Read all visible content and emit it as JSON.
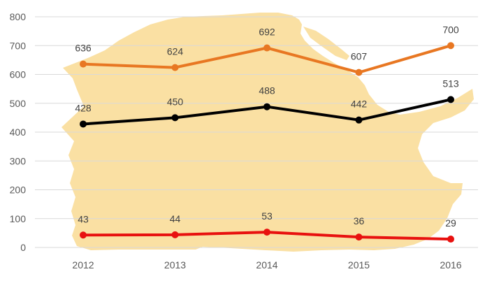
{
  "chart_data": {
    "type": "line",
    "title": "",
    "xlabel": "",
    "ylabel": "",
    "categories": [
      "2012",
      "2013",
      "2014",
      "2015",
      "2016"
    ],
    "ylim": [
      0,
      800
    ],
    "yticks": [
      0,
      100,
      200,
      300,
      400,
      500,
      600,
      700,
      800
    ],
    "grid": true,
    "legend": "none",
    "background_image": "map-silhouette",
    "series": [
      {
        "name": "orange-series",
        "color": "#E87722",
        "values": [
          636,
          624,
          692,
          607,
          700
        ],
        "labels": [
          "636",
          "624",
          "692",
          "607",
          "700"
        ]
      },
      {
        "name": "black-series",
        "color": "#000000",
        "values": [
          428,
          450,
          488,
          442,
          513
        ],
        "labels": [
          "428",
          "450",
          "488",
          "442",
          "513"
        ]
      },
      {
        "name": "red-series",
        "color": "#E8110F",
        "values": [
          43,
          44,
          53,
          36,
          29
        ],
        "labels": [
          "43",
          "44",
          "53",
          "36",
          "29"
        ]
      }
    ],
    "map_color": "#FAE0A3"
  }
}
